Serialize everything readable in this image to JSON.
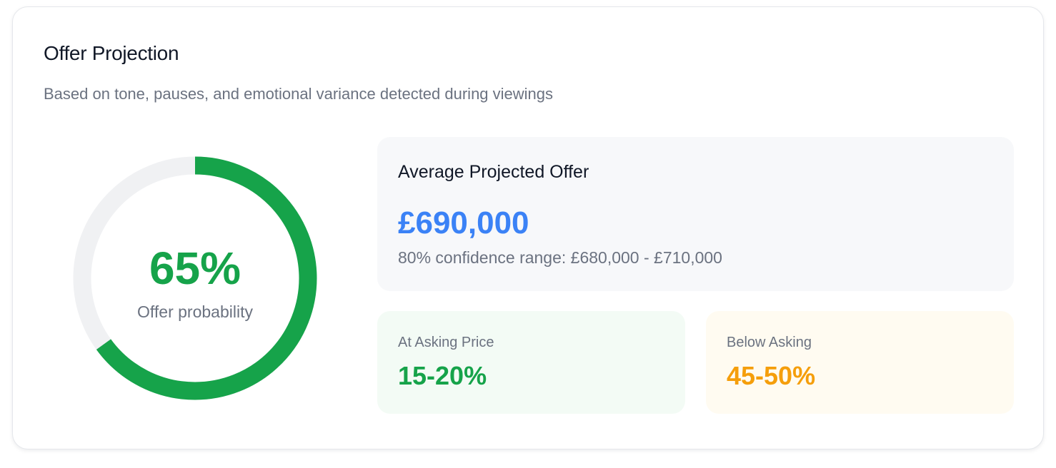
{
  "card": {
    "title": "Offer Projection",
    "subtitle": "Based on tone, pauses, and emotional variance detected during viewings"
  },
  "probability": {
    "value_text": "65%",
    "value": 0.65,
    "label": "Offer probability",
    "fill_color": "#16a34a",
    "track_color": "#f0f1f3"
  },
  "average_offer": {
    "title": "Average Projected Offer",
    "value": "£690,000",
    "range": "80% confidence range: £680,000 - £710,000"
  },
  "at_asking": {
    "label": "At Asking Price",
    "value": "15-20%"
  },
  "below_asking": {
    "label": "Below Asking",
    "value": "45-50%"
  }
}
